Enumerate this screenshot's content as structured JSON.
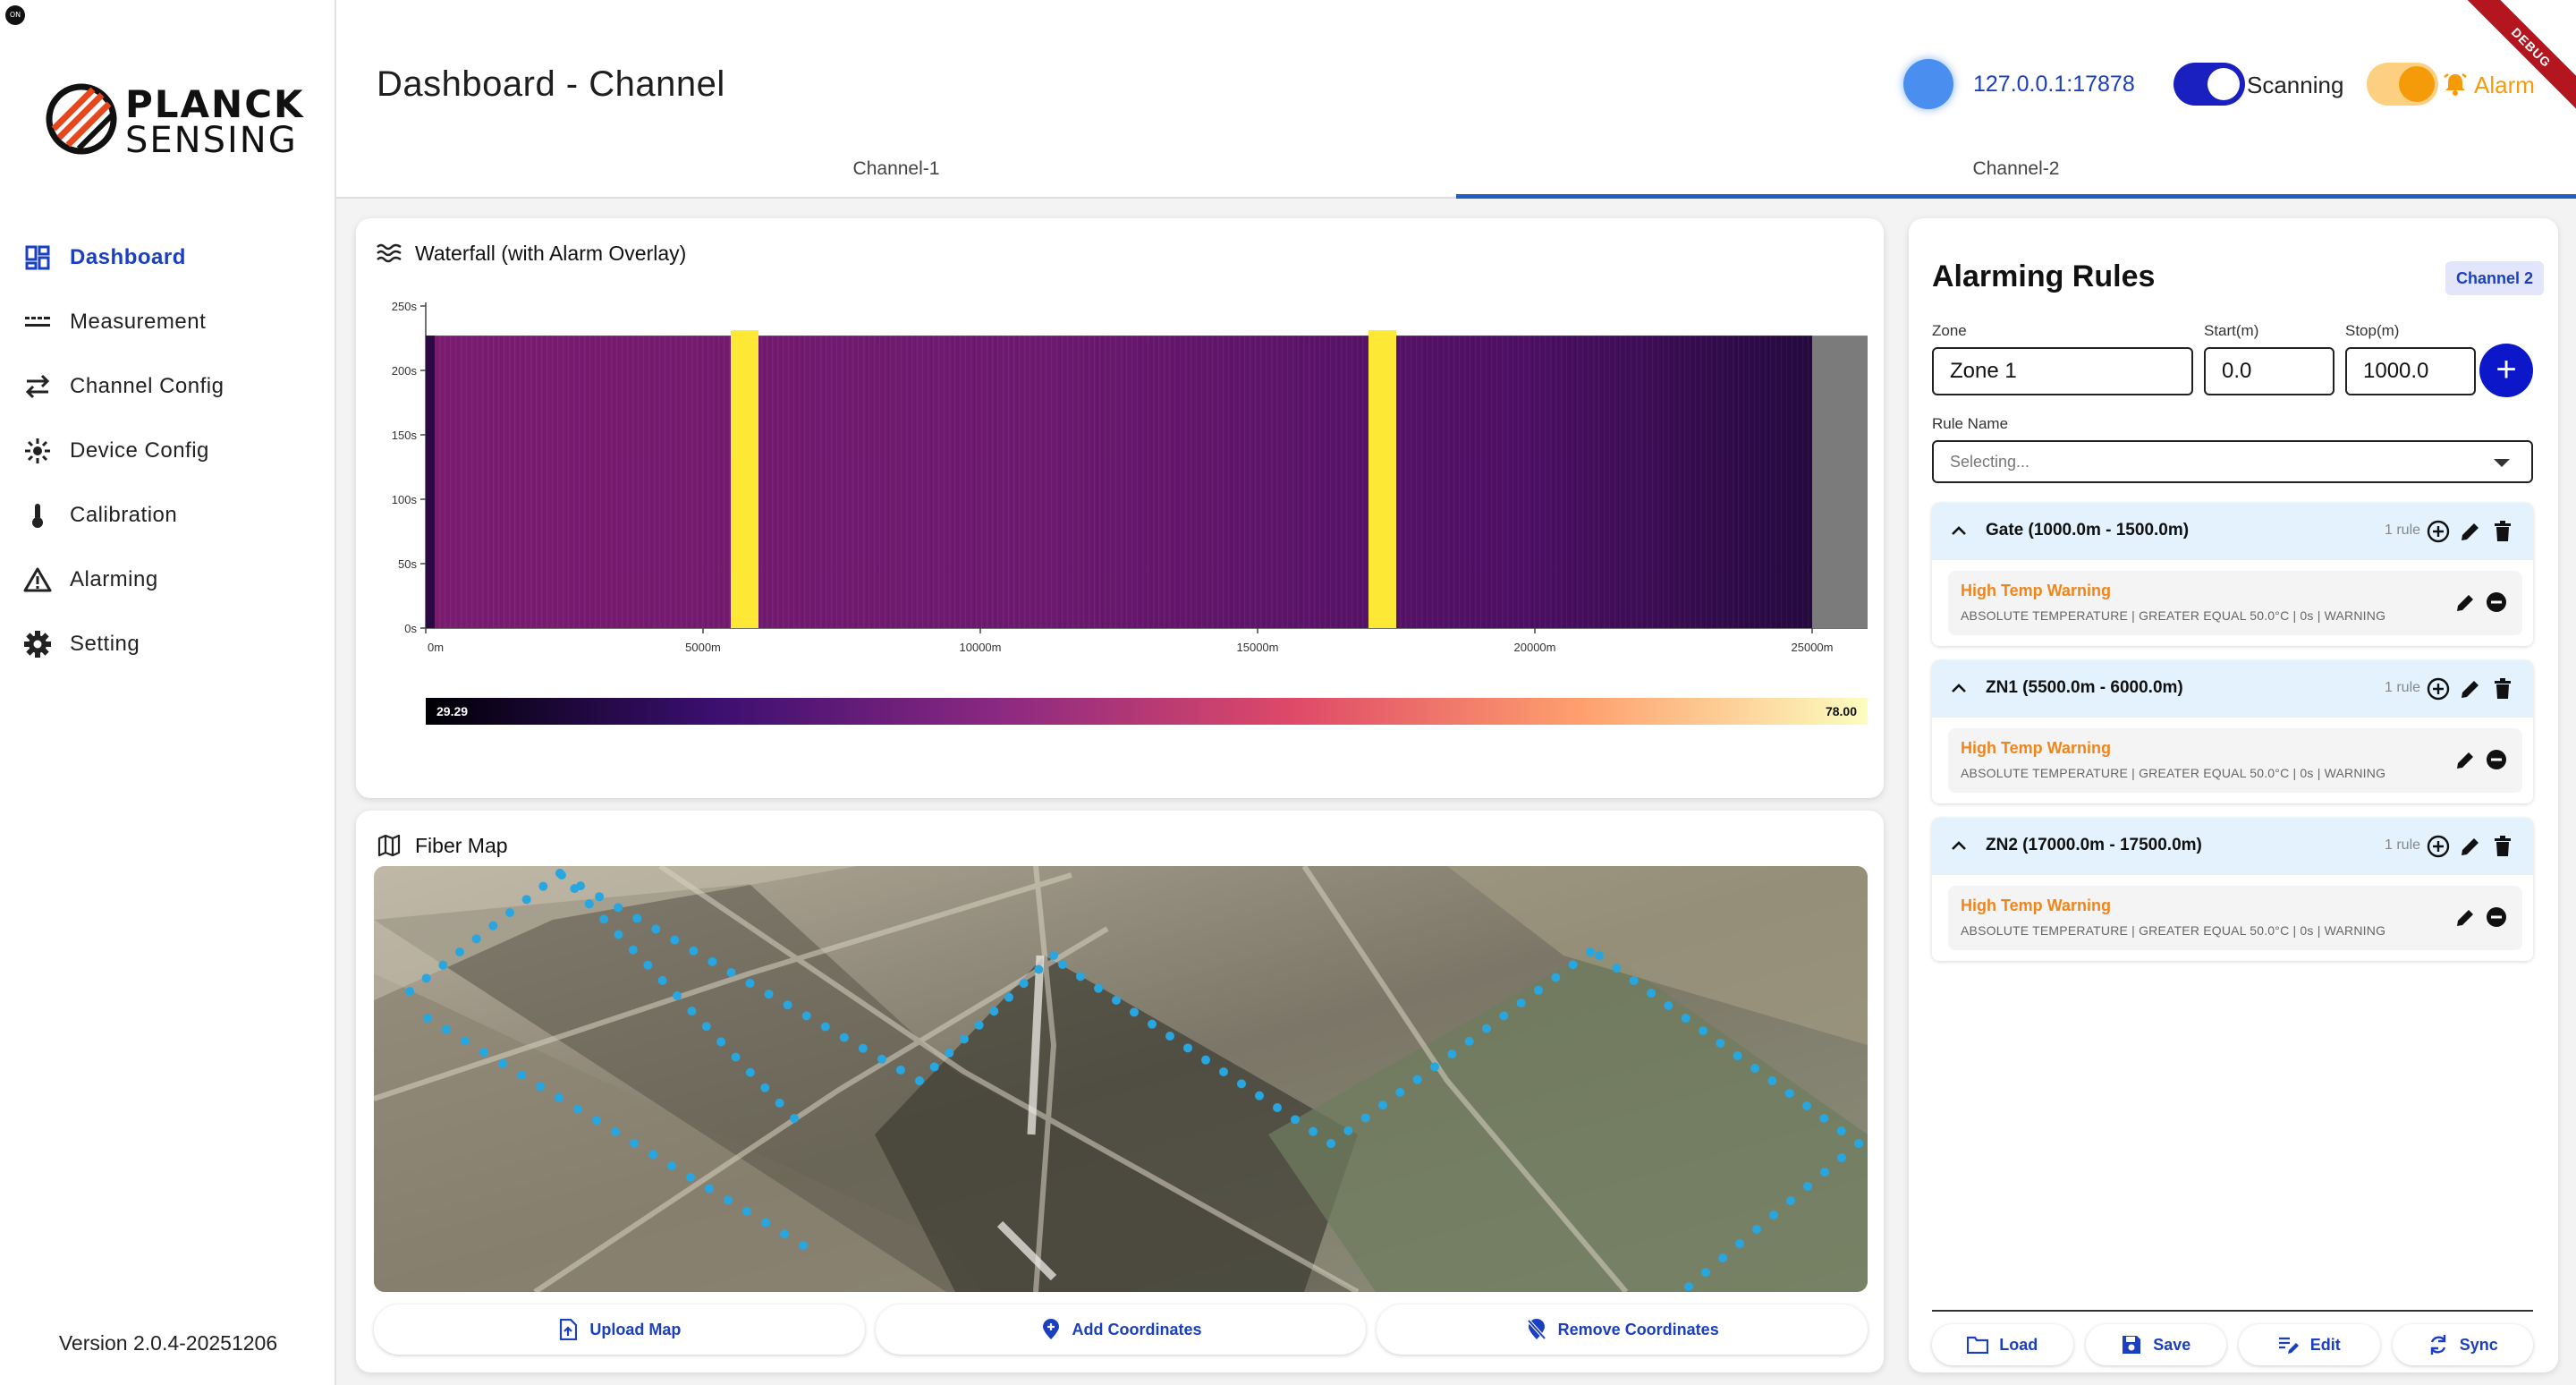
{
  "app": {
    "tiny_logo": "ON",
    "brand_line1": "PLANCK",
    "brand_line2": "SENSING",
    "version": "Version 2.0.4-20251206",
    "debug_ribbon": "DEBUG"
  },
  "sidebar": {
    "items": [
      {
        "label": "Dashboard",
        "icon": "dashboard-icon",
        "active": true
      },
      {
        "label": "Measurement",
        "icon": "measurement-icon",
        "active": false
      },
      {
        "label": "Channel Config",
        "icon": "swap-icon",
        "active": false
      },
      {
        "label": "Device Config",
        "icon": "device-icon",
        "active": false
      },
      {
        "label": "Calibration",
        "icon": "thermometer-icon",
        "active": false
      },
      {
        "label": "Alarming",
        "icon": "warning-icon",
        "active": false
      },
      {
        "label": "Setting",
        "icon": "gear-icon",
        "active": false
      }
    ]
  },
  "header": {
    "title": "Dashboard - Channel",
    "connection_address": "127.0.0.1:17878",
    "scanning_label": "Scanning",
    "scanning_on": true,
    "alarm_label": "Alarm",
    "alarm_on": true,
    "colors": {
      "accent": "#1a3fbf",
      "alarm": "#f59b0a",
      "connection": "#4a8ff0"
    }
  },
  "tabs": [
    {
      "label": "Channel-1",
      "active": false
    },
    {
      "label": "Channel-2",
      "active": true
    }
  ],
  "waterfall": {
    "title": "Waterfall (with Alarm Overlay)",
    "y_ticks": [
      "250s",
      "200s",
      "150s",
      "100s",
      "50s",
      "0s"
    ],
    "x_ticks": [
      "0m",
      "5000m",
      "10000m",
      "15000m",
      "20000m",
      "25000m"
    ],
    "colorbar_min": "29.29",
    "colorbar_max": "78.00",
    "x_range_m": [
      0,
      26000
    ],
    "y_range_s": [
      0,
      250
    ],
    "data_extent_s": 227,
    "alarm_bands_m": [
      [
        5500,
        6000
      ],
      [
        17000,
        17500
      ]
    ],
    "no_data_from_m": 25000
  },
  "fiber_map": {
    "title": "Fiber Map",
    "actions": [
      {
        "label": "Upload Map",
        "icon": "upload-file-icon"
      },
      {
        "label": "Add Coordinates",
        "icon": "add-location-icon"
      },
      {
        "label": "Remove Coordinates",
        "icon": "remove-location-icon"
      }
    ]
  },
  "rules": {
    "title": "Alarming Rules",
    "channel_chip": "Channel 2",
    "zone_label": "Zone",
    "zone_value": "Zone 1",
    "start_label": "Start(m)",
    "start_value": "0.0",
    "stop_label": "Stop(m)",
    "stop_value": "1000.0",
    "add_symbol": "+",
    "rule_name_label": "Rule Name",
    "rule_name_placeholder": "Selecting...",
    "zones": [
      {
        "name": "Gate (1000.0m - 1500.0m)",
        "count": "1 rule",
        "rule": {
          "name": "High Temp Warning",
          "desc": "ABSOLUTE TEMPERATURE | GREATER EQUAL 50.0°C | 0s | WARNING"
        }
      },
      {
        "name": "ZN1 (5500.0m - 6000.0m)",
        "count": "1 rule",
        "rule": {
          "name": "High Temp Warning",
          "desc": "ABSOLUTE TEMPERATURE | GREATER EQUAL 50.0°C | 0s | WARNING"
        }
      },
      {
        "name": "ZN2 (17000.0m - 17500.0m)",
        "count": "1 rule",
        "rule": {
          "name": "High Temp Warning",
          "desc": "ABSOLUTE TEMPERATURE | GREATER EQUAL 50.0°C | 0s | WARNING"
        }
      }
    ],
    "actions": [
      {
        "label": "Load",
        "icon": "folder-icon"
      },
      {
        "label": "Save",
        "icon": "save-icon"
      },
      {
        "label": "Edit",
        "icon": "edit-list-icon"
      },
      {
        "label": "Sync",
        "icon": "sync-icon"
      }
    ]
  }
}
